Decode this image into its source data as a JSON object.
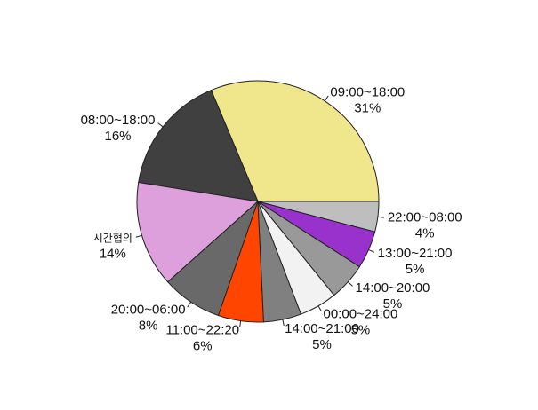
{
  "chart_data": {
    "type": "pie",
    "title": "",
    "start_angle_deg": 0,
    "direction": "counterclockwise",
    "slices": [
      {
        "label": "09:00~18:00",
        "percent_label": "31%",
        "value": 31,
        "color": "#f0e68c"
      },
      {
        "label": "08:00~18:00",
        "percent_label": "16%",
        "value": 16,
        "color": "#404040"
      },
      {
        "label": "시간협의",
        "percent_label": "14%",
        "value": 14,
        "color": "#dda0dd"
      },
      {
        "label": "20:00~06:00",
        "percent_label": "8%",
        "value": 8,
        "color": "#696969"
      },
      {
        "label": "11:00~22:20",
        "percent_label": "6%",
        "value": 6,
        "color": "#ff4500"
      },
      {
        "label": "14:00~21:00",
        "percent_label": "5%",
        "value": 5,
        "color": "#808080"
      },
      {
        "label": "00:00~24:00",
        "percent_label": "5%",
        "value": 5,
        "color": "#f2f2f2"
      },
      {
        "label": "14:00~20:00",
        "percent_label": "5%",
        "value": 5,
        "color": "#999999"
      },
      {
        "label": "13:00~21:00",
        "percent_label": "5%",
        "value": 5,
        "color": "#9932cc"
      },
      {
        "label": "22:00~08:00",
        "percent_label": "4%",
        "value": 4,
        "color": "#bebebe"
      }
    ]
  }
}
